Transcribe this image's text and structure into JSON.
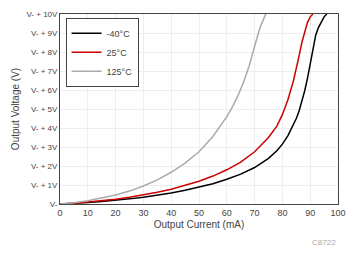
{
  "chart_data": {
    "type": "line",
    "xlabel": "Output Current (mA)",
    "ylabel": "Output Voltage (V)",
    "xlim": [
      0,
      100
    ],
    "ylim": [
      0,
      10
    ],
    "xticks": [
      0,
      10,
      20,
      30,
      40,
      50,
      60,
      70,
      80,
      90,
      100
    ],
    "yticks": [
      {
        "value": 0,
        "label": "V-"
      },
      {
        "value": 1,
        "label": "V- + 1V"
      },
      {
        "value": 2,
        "label": "V- + 2V"
      },
      {
        "value": 3,
        "label": "V- + 3V"
      },
      {
        "value": 4,
        "label": "V- + 4V"
      },
      {
        "value": 5,
        "label": "V- + 5V"
      },
      {
        "value": 6,
        "label": "V- + 6V"
      },
      {
        "value": 7,
        "label": "V- + 7V"
      },
      {
        "value": 8,
        "label": "V- + 8V"
      },
      {
        "value": 9,
        "label": "V- + 9V"
      },
      {
        "value": 10,
        "label": "V- + 10V"
      }
    ],
    "grid": true,
    "legend": "top-left",
    "annotations": [
      "C8722"
    ],
    "series": [
      {
        "name": "-40°C",
        "color": "#000000",
        "x": [
          0,
          2,
          5,
          10,
          15,
          20,
          25,
          30,
          35,
          40,
          45,
          50,
          55,
          60,
          65,
          70,
          75,
          78,
          80,
          82,
          84,
          85,
          86,
          87,
          88,
          89,
          90,
          91,
          92,
          93,
          94,
          95,
          96
        ],
        "values": [
          0,
          0.01,
          0.03,
          0.08,
          0.13,
          0.19,
          0.27,
          0.36,
          0.46,
          0.58,
          0.72,
          0.88,
          1.07,
          1.3,
          1.57,
          1.92,
          2.4,
          2.8,
          3.15,
          3.6,
          4.15,
          4.5,
          4.9,
          5.4,
          5.95,
          6.6,
          7.4,
          8.2,
          8.9,
          9.3,
          9.6,
          9.85,
          10.0
        ]
      },
      {
        "name": "25°C",
        "color": "#cc0000",
        "x": [
          0,
          2,
          5,
          10,
          15,
          20,
          25,
          30,
          35,
          40,
          45,
          50,
          55,
          60,
          65,
          70,
          75,
          78,
          80,
          82,
          84,
          85,
          86,
          87,
          88,
          89,
          90,
          91
        ],
        "values": [
          0,
          0.01,
          0.04,
          0.1,
          0.17,
          0.25,
          0.36,
          0.48,
          0.62,
          0.78,
          0.97,
          1.2,
          1.47,
          1.8,
          2.2,
          2.75,
          3.5,
          4.1,
          4.7,
          5.5,
          6.5,
          7.1,
          7.8,
          8.5,
          9.1,
          9.55,
          9.85,
          10.0
        ]
      },
      {
        "name": "125°C",
        "color": "#aaaaaa",
        "x": [
          0,
          2,
          5,
          10,
          15,
          20,
          25,
          30,
          35,
          40,
          45,
          50,
          55,
          60,
          62,
          64,
          66,
          68,
          70,
          72,
          74
        ],
        "values": [
          0,
          0.02,
          0.06,
          0.17,
          0.3,
          0.47,
          0.68,
          0.95,
          1.27,
          1.67,
          2.15,
          2.75,
          3.55,
          4.6,
          5.1,
          5.7,
          6.4,
          7.25,
          8.3,
          9.3,
          10.0
        ]
      }
    ]
  }
}
